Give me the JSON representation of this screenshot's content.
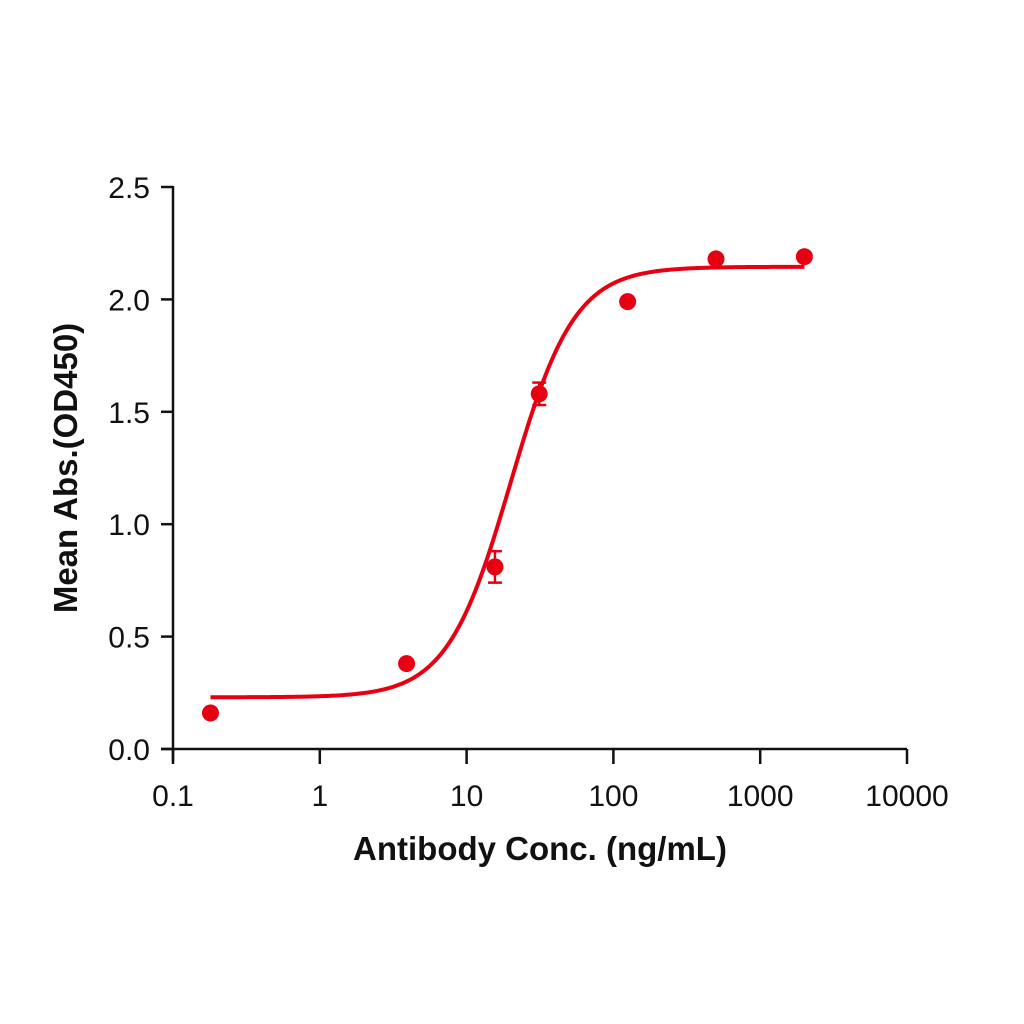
{
  "chart_data": {
    "type": "scatter",
    "title": "",
    "xlabel": "Antibody Conc. (ng/mL)",
    "ylabel": "Mean Abs.(OD450)",
    "xscale": "log",
    "xlim": [
      0.1,
      10000
    ],
    "ylim": [
      0,
      2.5
    ],
    "x_ticks": [
      0.1,
      1,
      10,
      100,
      1000,
      10000
    ],
    "x_tick_labels": [
      "0.1",
      "1",
      "10",
      "100",
      "1000",
      "10000"
    ],
    "y_ticks": [
      0,
      0.5,
      1.0,
      1.5,
      2.0,
      2.5
    ],
    "y_tick_labels": [
      "0.0",
      "0.5",
      "1.0",
      "1.5",
      "2.0",
      "2.5"
    ],
    "grid": false,
    "legend": null,
    "series": [
      {
        "name": "Mean Abs.",
        "color": "#e60012",
        "x": [
          0.18,
          3.9,
          15.6,
          31.25,
          125,
          500,
          2000
        ],
        "y": [
          0.16,
          0.38,
          0.81,
          1.58,
          1.99,
          2.18,
          2.19
        ],
        "error": [
          0,
          0,
          0.07,
          0.05,
          0,
          0,
          0
        ]
      }
    ],
    "fit": {
      "model": "4PL",
      "color": "#e60012",
      "bottom": 0.23,
      "top": 2.145,
      "ec50": 20,
      "hill": 2.0,
      "x_range": [
        0.18,
        2000
      ]
    }
  },
  "axes": {
    "x_title": "Antibody Conc. (ng/mL)",
    "y_title": "Mean Abs.(OD450)"
  }
}
